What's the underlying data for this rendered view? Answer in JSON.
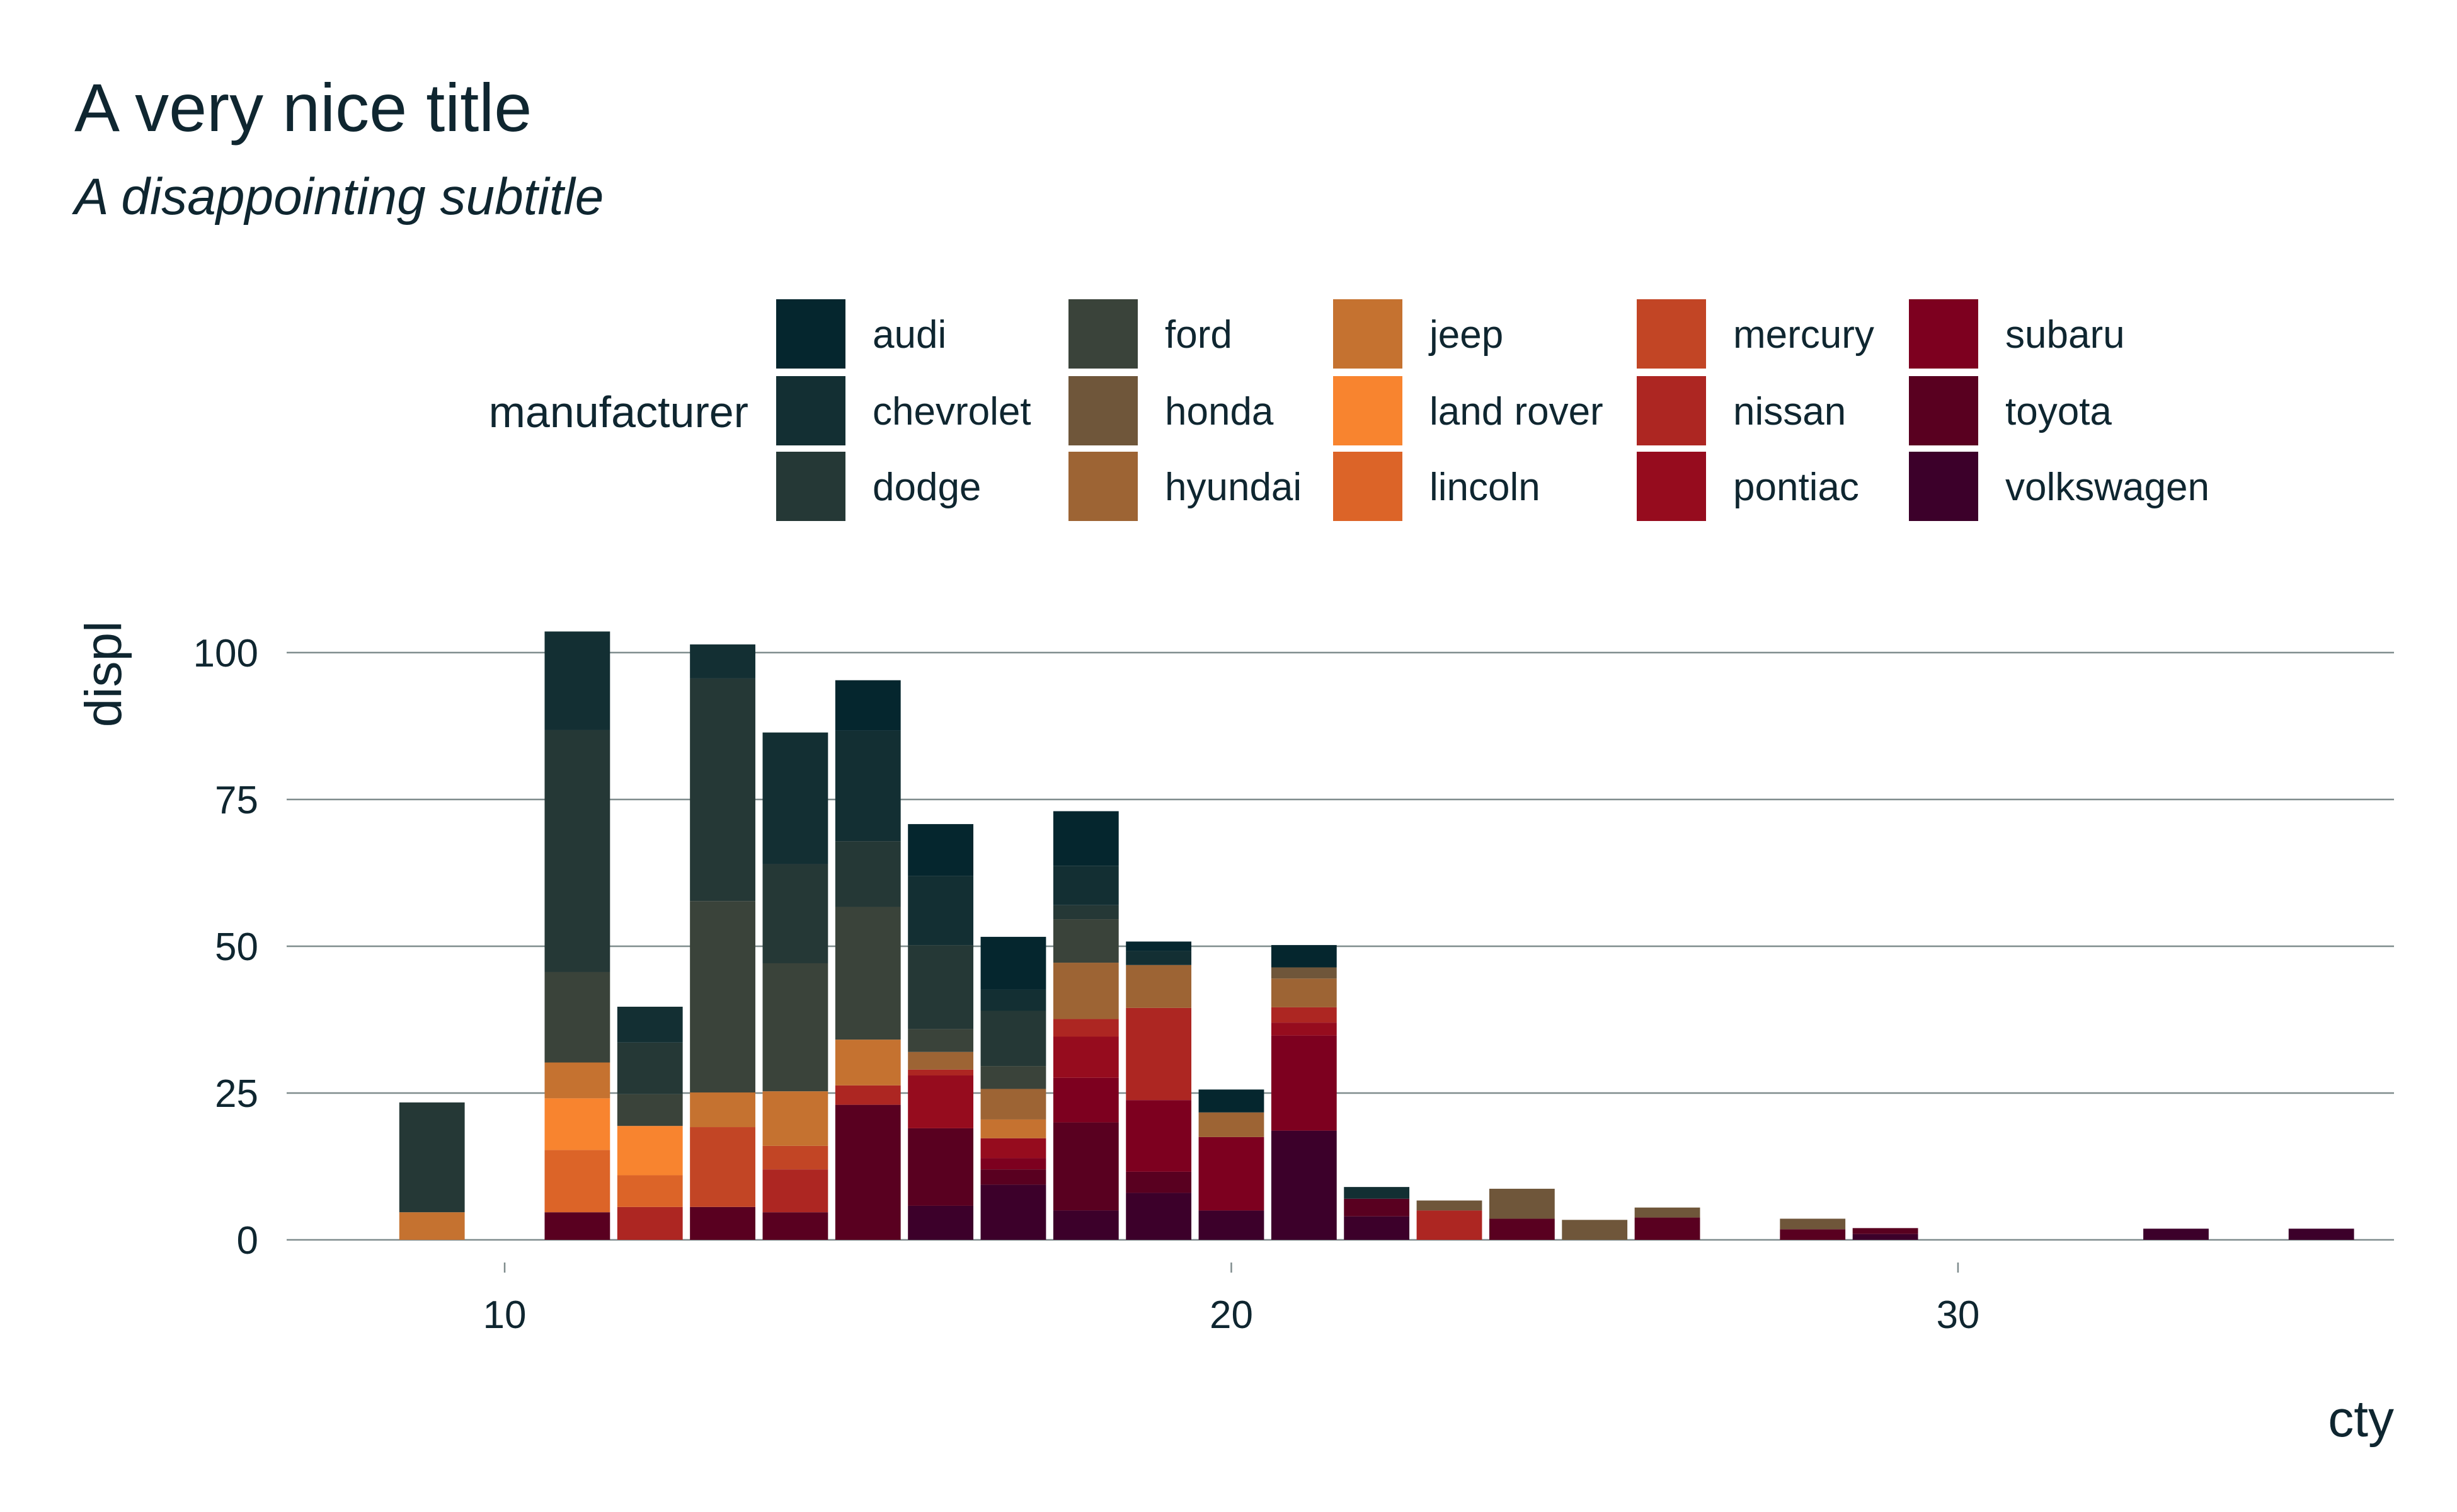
{
  "chart_data": {
    "type": "bar",
    "stacked": true,
    "title": "A very nice title",
    "subtitle": "A disappointing subtitle",
    "xlabel": "cty",
    "ylabel": "displ",
    "xlim": [
      7,
      36
    ],
    "ylim": [
      0,
      106
    ],
    "x_ticks": [
      10,
      20,
      30
    ],
    "y_ticks": [
      0,
      25,
      50,
      75,
      100
    ],
    "grid": "horizontal",
    "legend": {
      "title": "manufacturer",
      "position": "top"
    },
    "series": [
      {
        "name": "audi",
        "color": "#05262e"
      },
      {
        "name": "chevrolet",
        "color": "#132f33"
      },
      {
        "name": "dodge",
        "color": "#253836"
      },
      {
        "name": "ford",
        "color": "#3a433a"
      },
      {
        "name": "honda",
        "color": "#6f563a"
      },
      {
        "name": "hyundai",
        "color": "#9d6434"
      },
      {
        "name": "jeep",
        "color": "#c57230"
      },
      {
        "name": "land rover",
        "color": "#f8842f"
      },
      {
        "name": "lincoln",
        "color": "#dc6428"
      },
      {
        "name": "mercury",
        "color": "#c24525"
      },
      {
        "name": "nissan",
        "color": "#ad2622"
      },
      {
        "name": "pontiac",
        "color": "#960c1e"
      },
      {
        "name": "subaru",
        "color": "#7d001f"
      },
      {
        "name": "toyota",
        "color": "#590020"
      },
      {
        "name": "volkswagen",
        "color": "#3c002a"
      }
    ],
    "bars": [
      {
        "x": 9,
        "stack": [
          {
            "s": "dodge",
            "v": 18.7
          },
          {
            "s": "jeep",
            "v": 4.7
          }
        ]
      },
      {
        "x": 11,
        "stack": [
          {
            "s": "audi",
            "v": 0
          },
          {
            "s": "chevrolet",
            "v": 16.8
          },
          {
            "s": "dodge",
            "v": 41.2
          },
          {
            "s": "ford",
            "v": 15.4
          },
          {
            "s": "jeep",
            "v": 6.1
          },
          {
            "s": "land rover",
            "v": 8.8
          },
          {
            "s": "lincoln",
            "v": 10.6
          },
          {
            "s": "mercury",
            "v": 0
          },
          {
            "s": "toyota",
            "v": 4.7
          }
        ]
      },
      {
        "x": 12,
        "stack": [
          {
            "s": "chevrolet",
            "v": 6.1
          },
          {
            "s": "dodge",
            "v": 8.8
          },
          {
            "s": "ford",
            "v": 5.4
          },
          {
            "s": "land rover",
            "v": 8.4
          },
          {
            "s": "lincoln",
            "v": 5.4
          },
          {
            "s": "nissan",
            "v": 5.6
          }
        ]
      },
      {
        "x": 13,
        "stack": [
          {
            "s": "audi",
            "v": 0
          },
          {
            "s": "chevrolet",
            "v": 5.8
          },
          {
            "s": "dodge",
            "v": 37.9
          },
          {
            "s": "ford",
            "v": 32.6
          },
          {
            "s": "jeep",
            "v": 5.9
          },
          {
            "s": "mercury",
            "v": 13.6
          },
          {
            "s": "nissan",
            "v": 0
          },
          {
            "s": "toyota",
            "v": 5.6
          }
        ]
      },
      {
        "x": 14,
        "stack": [
          {
            "s": "chevrolet",
            "v": 22.4
          },
          {
            "s": "dodge",
            "v": 16.9
          },
          {
            "s": "ford",
            "v": 21.8
          },
          {
            "s": "jeep",
            "v": 9.3
          },
          {
            "s": "mercury",
            "v": 4.0
          },
          {
            "s": "nissan",
            "v": 7.3
          },
          {
            "s": "toyota",
            "v": 4.7
          }
        ]
      },
      {
        "x": 15,
        "stack": [
          {
            "s": "audi",
            "v": 8.6
          },
          {
            "s": "chevrolet",
            "v": 18.8
          },
          {
            "s": "dodge",
            "v": 11.2
          },
          {
            "s": "ford",
            "v": 22.6
          },
          {
            "s": "jeep",
            "v": 7.8
          },
          {
            "s": "nissan",
            "v": 3.3
          },
          {
            "s": "toyota",
            "v": 23.0
          }
        ]
      },
      {
        "x": 16,
        "stack": [
          {
            "s": "audi",
            "v": 8.8
          },
          {
            "s": "chevrolet",
            "v": 11.8
          },
          {
            "s": "dodge",
            "v": 14.3
          },
          {
            "s": "ford",
            "v": 3.9
          },
          {
            "s": "hyundai",
            "v": 3.0
          },
          {
            "s": "nissan",
            "v": 1.0
          },
          {
            "s": "pontiac",
            "v": 9.0
          },
          {
            "s": "toyota",
            "v": 13.2
          },
          {
            "s": "volkswagen",
            "v": 5.8
          }
        ]
      },
      {
        "x": 17,
        "stack": [
          {
            "s": "audi",
            "v": 9.0
          },
          {
            "s": "chevrolet",
            "v": 3.6
          },
          {
            "s": "dodge",
            "v": 9.4
          },
          {
            "s": "ford",
            "v": 3.9
          },
          {
            "s": "hyundai",
            "v": 5.2
          },
          {
            "s": "jeep",
            "v": 3.2
          },
          {
            "s": "pontiac",
            "v": 3.4
          },
          {
            "s": "subaru",
            "v": 1.9
          },
          {
            "s": "toyota",
            "v": 2.6
          },
          {
            "s": "volkswagen",
            "v": 9.4
          }
        ]
      },
      {
        "x": 18,
        "stack": [
          {
            "s": "audi",
            "v": 9.3
          },
          {
            "s": "chevrolet",
            "v": 6.7
          },
          {
            "s": "dodge",
            "v": 2.4
          },
          {
            "s": "ford",
            "v": 7.4
          },
          {
            "s": "hyundai",
            "v": 9.6
          },
          {
            "s": "nissan",
            "v": 3.0
          },
          {
            "s": "pontiac",
            "v": 7.0
          },
          {
            "s": "subaru",
            "v": 7.6
          },
          {
            "s": "toyota",
            "v": 15.0
          },
          {
            "s": "volkswagen",
            "v": 5.0
          }
        ]
      },
      {
        "x": 19,
        "stack": [
          {
            "s": "audi",
            "v": 1.6
          },
          {
            "s": "chevrolet",
            "v": 2.4
          },
          {
            "s": "hyundai",
            "v": 7.3
          },
          {
            "s": "nissan",
            "v": 15.7
          },
          {
            "s": "subaru",
            "v": 12.2
          },
          {
            "s": "toyota",
            "v": 3.6
          },
          {
            "s": "volkswagen",
            "v": 8.0
          }
        ]
      },
      {
        "x": 20,
        "stack": [
          {
            "s": "audi",
            "v": 3.9
          },
          {
            "s": "hyundai",
            "v": 4.2
          },
          {
            "s": "jeep",
            "v": 0
          },
          {
            "s": "honda",
            "v": 0
          },
          {
            "s": "subaru",
            "v": 12.5
          },
          {
            "s": "volkswagen",
            "v": 5.0
          }
        ]
      },
      {
        "x": 21,
        "stack": [
          {
            "s": "audi",
            "v": 3.8
          },
          {
            "s": "chevrolet",
            "v": 0
          },
          {
            "s": "honda",
            "v": 1.9
          },
          {
            "s": "hyundai",
            "v": 4.9
          },
          {
            "s": "nissan",
            "v": 2.6
          },
          {
            "s": "pontiac",
            "v": 2.2
          },
          {
            "s": "subaru",
            "v": 16.2
          },
          {
            "s": "volkswagen",
            "v": 18.6
          }
        ]
      },
      {
        "x": 22,
        "stack": [
          {
            "s": "chevrolet",
            "v": 2.0
          },
          {
            "s": "toyota",
            "v": 3.0
          },
          {
            "s": "volkswagen",
            "v": 4.0
          }
        ]
      },
      {
        "x": 23,
        "stack": [
          {
            "s": "honda",
            "v": 1.7
          },
          {
            "s": "nissan",
            "v": 5.0
          }
        ]
      },
      {
        "x": 24,
        "stack": [
          {
            "s": "honda",
            "v": 5.1
          },
          {
            "s": "toyota",
            "v": 3.6
          }
        ]
      },
      {
        "x": 25,
        "stack": [
          {
            "s": "honda",
            "v": 3.4
          }
        ]
      },
      {
        "x": 26,
        "stack": [
          {
            "s": "honda",
            "v": 1.7
          },
          {
            "s": "toyota",
            "v": 3.8
          }
        ]
      },
      {
        "x": 28,
        "stack": [
          {
            "s": "honda",
            "v": 1.8
          },
          {
            "s": "toyota",
            "v": 1.8
          }
        ]
      },
      {
        "x": 29,
        "stack": [
          {
            "s": "toyota",
            "v": 1.0
          },
          {
            "s": "volkswagen",
            "v": 1.0
          }
        ]
      },
      {
        "x": 33,
        "stack": [
          {
            "s": "volkswagen",
            "v": 1.9
          }
        ]
      },
      {
        "x": 35,
        "stack": [
          {
            "s": "volkswagen",
            "v": 1.9
          }
        ]
      }
    ]
  }
}
